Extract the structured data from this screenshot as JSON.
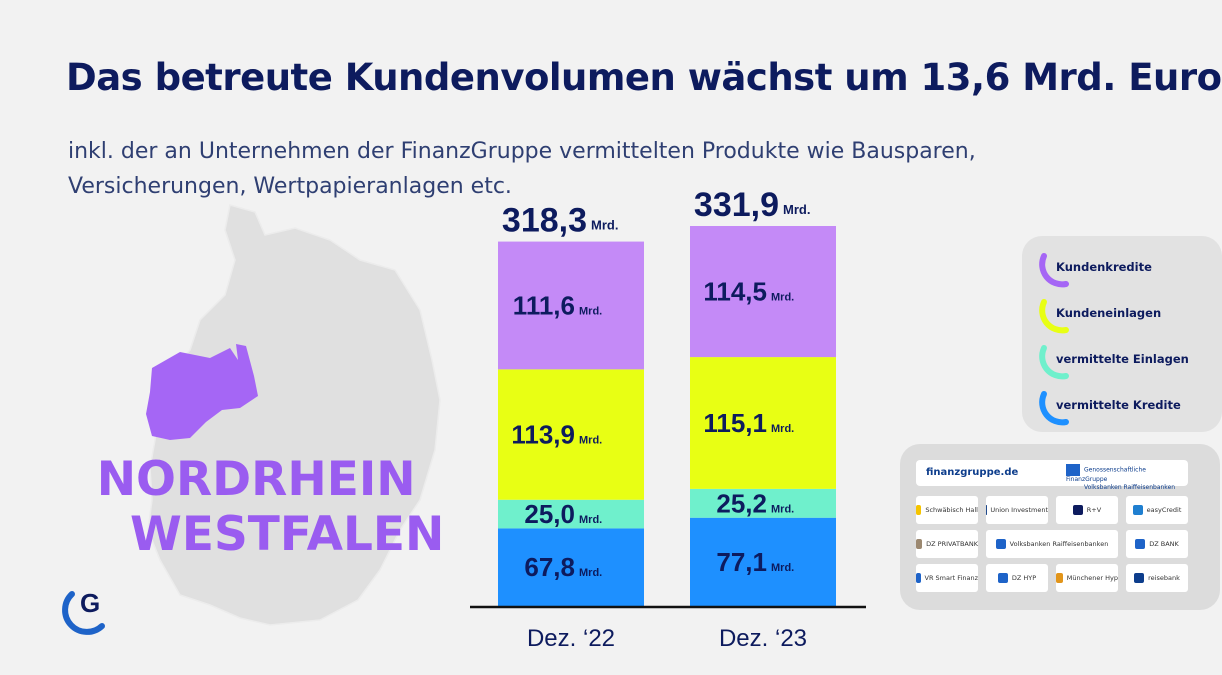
{
  "header": {
    "title": "Das betreute Kundenvolumen wächst um 13,6 Mrd. Euro",
    "subtitle": "inkl. der an Unternehmen der FinanzGruppe vermittelten Produkte wie Bausparen, Versicherungen, Wertpapieranlagen etc."
  },
  "region": {
    "line1": "NORDRHEIN",
    "line2": "WESTFALEN",
    "highlight_color": "#a566f5",
    "map_color": "#e0e0e0"
  },
  "logo": {
    "icon": "finanzgruppe-g-icon"
  },
  "chart_data": {
    "type": "bar",
    "stacked": true,
    "categories": [
      "Dez. ‘22",
      "Dez. ‘23"
    ],
    "unit": "Mrd.",
    "totals": [
      318.3,
      331.9
    ],
    "total_labels": [
      "318,3",
      "331,9"
    ],
    "series": [
      {
        "name": "vermittelte Kredite",
        "values": [
          67.8,
          77.1
        ],
        "labels": [
          "67,8",
          "77,1"
        ],
        "color": "#1e90ff"
      },
      {
        "name": "vermittelte Einlagen",
        "values": [
          25.0,
          25.2
        ],
        "labels": [
          "25,0",
          "25,2"
        ],
        "color": "#6ff0cc"
      },
      {
        "name": "Kundeneinlagen",
        "values": [
          113.9,
          115.1
        ],
        "labels": [
          "113,9",
          "115,1"
        ],
        "color": "#e8ff14"
      },
      {
        "name": "Kundenkredite",
        "values": [
          111.6,
          114.5
        ],
        "labels": [
          "111,6",
          "114,5"
        ],
        "color": "#c48af7"
      }
    ],
    "ylim": [
      0,
      331.9
    ],
    "grid": false,
    "legend_position": "right"
  },
  "legend": {
    "items": [
      {
        "label": "Kundenkredite",
        "color": "#a566f5"
      },
      {
        "label": "Kundeneinlagen",
        "color": "#e8ff14"
      },
      {
        "label": "vermittelte Einlagen",
        "color": "#6ff0cc"
      },
      {
        "label": "vermittelte Kredite",
        "color": "#1e90ff"
      }
    ]
  },
  "partners": {
    "site": "finanzgruppe.de",
    "group_line1": "Genossenschaftliche FinanzGruppe",
    "group_line2": "Volksbanken Raiffeisenbanken",
    "logos": [
      {
        "label": "Schwäbisch Hall",
        "color": "#f5c400"
      },
      {
        "label": "Union Investment",
        "color": "#1f4a8c"
      },
      {
        "label": "R+V",
        "color": "#0d1b5e"
      },
      {
        "label": "easyCredit",
        "color": "#1f7fd0"
      },
      {
        "label": "DZ PRIVATBANK",
        "color": "#9b8870"
      },
      {
        "label": "Volksbanken Raiffeisenbanken",
        "color": "#1e63c8"
      },
      {
        "label": "DZ BANK",
        "color": "#1e63c8"
      },
      {
        "label": "VR Smart Finanz",
        "color": "#1e63c8"
      },
      {
        "label": "DZ HYP",
        "color": "#1e63c8"
      },
      {
        "label": "Münchener Hyp",
        "color": "#e2951a"
      },
      {
        "label": "reisebank",
        "color": "#0d3d8c"
      }
    ]
  }
}
